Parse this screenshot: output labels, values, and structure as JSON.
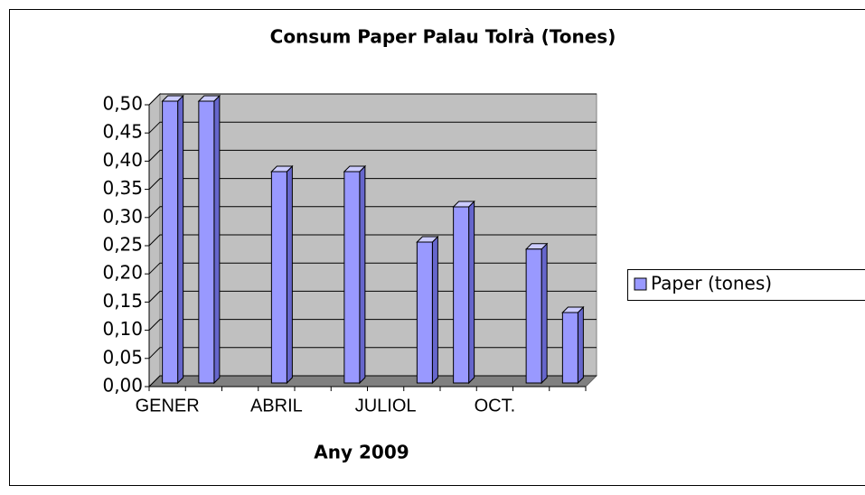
{
  "chart_data": {
    "type": "bar3d",
    "title": "Consum Paper Palau Tolrà (Tones)",
    "x_label": "Any 2009",
    "categories": [
      "GENER",
      null,
      null,
      "ABRIL",
      null,
      null,
      "JULIOL",
      null,
      null,
      "OCT.",
      null,
      null
    ],
    "series": [
      {
        "name": "Paper (tones)",
        "color": "#9999ff",
        "values": [
          0.5,
          0.5,
          null,
          0.375,
          null,
          0.375,
          null,
          0.25,
          0.3125,
          null,
          0.2375,
          0.125
        ]
      }
    ],
    "ylim": [
      0,
      0.5
    ],
    "yticks": [
      {
        "value": 0,
        "label": "0,00"
      },
      {
        "value": 0.05,
        "label": "0,05"
      },
      {
        "value": 0.1,
        "label": "0,10"
      },
      {
        "value": 0.15,
        "label": "0,15"
      },
      {
        "value": 0.2,
        "label": "0,20"
      },
      {
        "value": 0.25,
        "label": "0,25"
      },
      {
        "value": 0.3,
        "label": "0,30"
      },
      {
        "value": 0.35,
        "label": "0,35"
      },
      {
        "value": 0.4,
        "label": "0,40"
      },
      {
        "value": 0.45,
        "label": "0,45"
      },
      {
        "value": 0.5,
        "label": "0,50"
      }
    ],
    "grid": true,
    "legend": "right"
  }
}
